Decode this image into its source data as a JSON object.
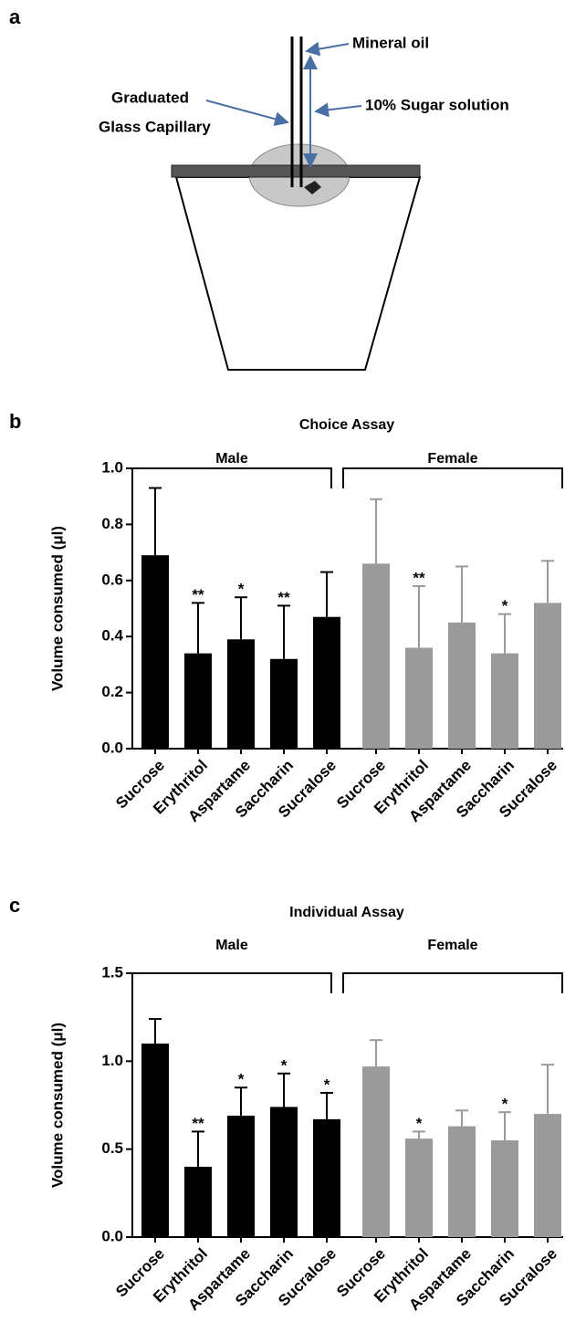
{
  "diagram": {
    "panel_label": "a",
    "labels": [
      "Mineral oil",
      "10% Sugar solution",
      "Graduated",
      "Glass Capillary"
    ]
  },
  "chart_data": [
    {
      "type": "bar",
      "panel_label": "b",
      "title": "Choice Assay",
      "ylabel": "Volume consumed (μl)",
      "categories": [
        "Sucrose",
        "Erythritol",
        "Aspartame",
        "Saccharin",
        "Sucralose"
      ],
      "series": [
        {
          "name": "Male",
          "color": "#000000",
          "values": [
            0.69,
            0.34,
            0.39,
            0.32,
            0.47
          ],
          "errors": [
            0.24,
            0.18,
            0.15,
            0.19,
            0.16
          ],
          "annotations": [
            null,
            "**",
            "*",
            "**",
            null
          ]
        },
        {
          "name": "Female",
          "color": "#9a9a9a",
          "values": [
            0.66,
            0.36,
            0.45,
            0.34,
            0.52
          ],
          "errors": [
            0.23,
            0.22,
            0.2,
            0.14,
            0.15
          ],
          "annotations": [
            null,
            "**",
            null,
            "*",
            null
          ]
        }
      ],
      "ylim": [
        0,
        1
      ],
      "yticks": [
        {
          "value": 0,
          "label": "0.0"
        },
        0.2,
        0.4,
        0.6,
        0.8,
        {
          "value": 1,
          "label": "1.0"
        }
      ]
    },
    {
      "type": "bar",
      "panel_label": "c",
      "title": "Individual Assay",
      "ylabel": "Volume consumed (μl)",
      "categories": [
        "Sucrose",
        "Erythritol",
        "Aspartame",
        "Saccharin",
        "Sucralose"
      ],
      "series": [
        {
          "name": "Male",
          "color": "#000000",
          "values": [
            1.1,
            0.4,
            0.69,
            0.74,
            0.67
          ],
          "errors": [
            0.14,
            0.2,
            0.16,
            0.19,
            0.15
          ],
          "annotations": [
            null,
            "**",
            "*",
            "*",
            "*"
          ]
        },
        {
          "name": "Female",
          "color": "#9a9a9a",
          "values": [
            0.97,
            0.56,
            0.63,
            0.55,
            0.7
          ],
          "errors": [
            0.15,
            0.04,
            0.09,
            0.16,
            0.28
          ],
          "annotations": [
            null,
            "*",
            null,
            "*",
            null
          ]
        }
      ],
      "ylim": [
        0,
        1.5
      ],
      "yticks": [
        {
          "value": 0,
          "label": "0.0"
        },
        0.5,
        {
          "value": 1,
          "label": "1.0"
        },
        1.5
      ]
    }
  ]
}
